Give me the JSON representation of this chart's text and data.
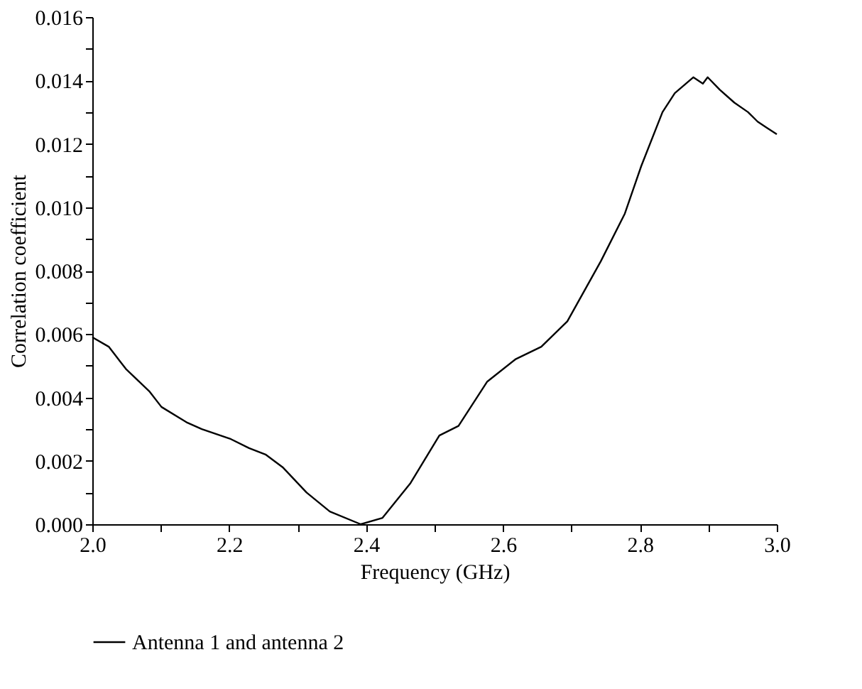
{
  "chart_data": {
    "type": "line",
    "xlabel": "Frequency (GHz)",
    "ylabel": "Correlation coefficient",
    "legend": "bottom",
    "grid": false,
    "line_style": "solid",
    "marker": "none",
    "xlim": [
      2.0,
      3.0
    ],
    "ylim": [
      0,
      0.016
    ],
    "xticks": [
      {
        "value": 2.0,
        "label": "2.0"
      },
      {
        "value": 2.1,
        "label": null
      },
      {
        "value": 2.2,
        "label": "2.2"
      },
      {
        "value": 2.3,
        "label": null
      },
      {
        "value": 2.4,
        "label": "2.4"
      },
      {
        "value": 2.5,
        "label": null
      },
      {
        "value": 2.6,
        "label": "2.6"
      },
      {
        "value": 2.7,
        "label": null
      },
      {
        "value": 2.8,
        "label": "2.8"
      },
      {
        "value": 2.9,
        "label": null
      },
      {
        "value": 3.0,
        "label": "3.0"
      }
    ],
    "yticks": [
      {
        "value": 0,
        "label": "0.000"
      },
      {
        "value": 0.001,
        "label": null
      },
      {
        "value": 0.002,
        "label": "0.002"
      },
      {
        "value": 0.003,
        "label": null
      },
      {
        "value": 0.004,
        "label": "0.004"
      },
      {
        "value": 0.005,
        "label": null
      },
      {
        "value": 0.006,
        "label": "0.006"
      },
      {
        "value": 0.007,
        "label": null
      },
      {
        "value": 0.008,
        "label": "0.008"
      },
      {
        "value": 0.009,
        "label": null
      },
      {
        "value": 0.01,
        "label": "0.010"
      },
      {
        "value": 0.011,
        "label": null
      },
      {
        "value": 0.012,
        "label": "0.012"
      },
      {
        "value": 0.013,
        "label": null
      },
      {
        "value": 0.014,
        "label": "0.014"
      },
      {
        "value": 0.015,
        "label": null
      },
      {
        "value": 0.016,
        "label": "0.016"
      }
    ],
    "series": [
      {
        "name": "Antenna 1 and antenna 2",
        "color": "#000000",
        "x": [
          2.0,
          2.024,
          2.049,
          2.083,
          2.101,
          2.139,
          2.16,
          2.201,
          2.229,
          2.253,
          2.278,
          2.313,
          2.347,
          2.392,
          2.424,
          2.465,
          2.507,
          2.535,
          2.577,
          2.618,
          2.656,
          2.694,
          2.743,
          2.778,
          2.802,
          2.833,
          2.851,
          2.878,
          2.892,
          2.899,
          2.917,
          2.938,
          2.958,
          2.972,
          2.986,
          3.0
        ],
        "values": [
          0.0059,
          0.0056,
          0.0049,
          0.0042,
          0.0037,
          0.0032,
          0.003,
          0.0027,
          0.0024,
          0.0022,
          0.0018,
          0.001,
          0.0004,
          0.0,
          0.0002,
          0.0013,
          0.0028,
          0.0031,
          0.0045,
          0.0052,
          0.0056,
          0.0064,
          0.0083,
          0.0098,
          0.0113,
          0.013,
          0.0136,
          0.0141,
          0.0139,
          0.0141,
          0.0137,
          0.0133,
          0.013,
          0.0127,
          0.0125,
          0.0123
        ]
      }
    ]
  }
}
